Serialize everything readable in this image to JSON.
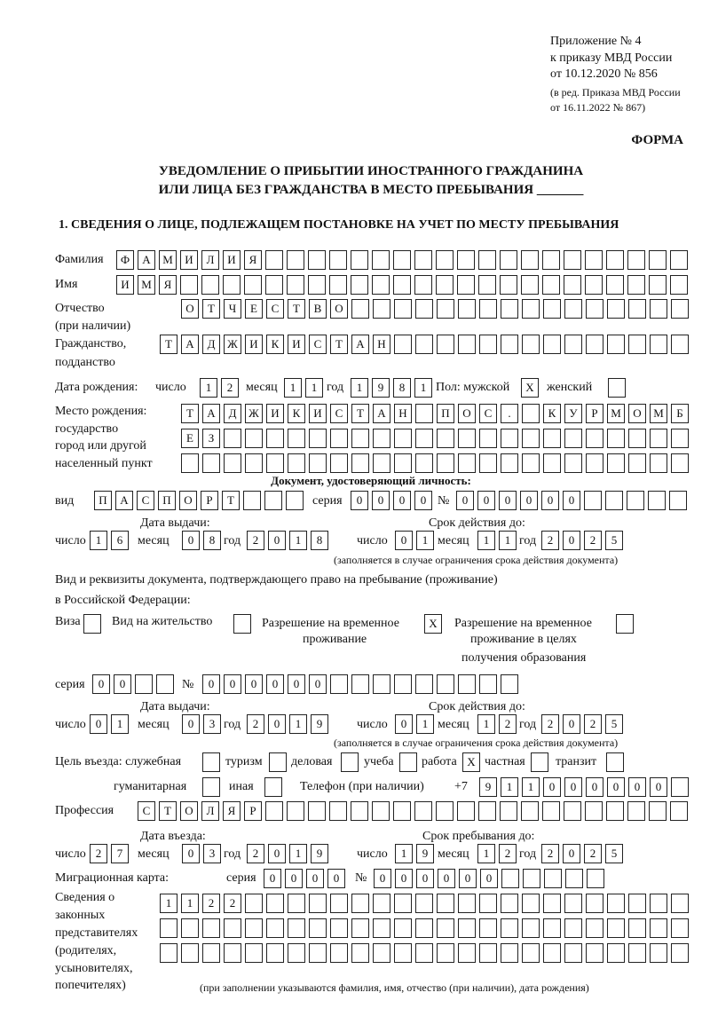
{
  "header": {
    "appendix": "Приложение № 4",
    "order": "к приказу МВД России",
    "order_date": "от 10.12.2020 № 856",
    "revision_1": "(в ред. Приказа МВД России",
    "revision_2": "от 16.11.2022 № 867)",
    "form_label": "ФОРМА",
    "title_1": "УВЕДОМЛЕНИЕ О ПРИБЫТИИ ИНОСТРАННОГО ГРАЖДАНИНА",
    "title_2": "ИЛИ ЛИЦА БЕЗ ГРАЖДАНСТВА В МЕСТО ПРЕБЫВАНИЯ _______",
    "section_1": "1. СВЕДЕНИЯ О ЛИЦЕ, ПОДЛЕЖАЩЕМ ПОСТАНОВКЕ НА УЧЕТ ПО МЕСТУ ПРЕБЫВАНИЯ"
  },
  "labels": {
    "surname": "Фамилия",
    "name": "Имя",
    "patronymic_1": "Отчество",
    "patronymic_2": "(при наличии)",
    "citizenship_1": "Гражданство,",
    "citizenship_2": "подданство",
    "birth_date": "Дата рождения:",
    "day": "число",
    "month": "месяц",
    "year": "год",
    "sex_male": "Пол: мужской",
    "sex_female": "женский",
    "birthplace_1": "Место рождения:",
    "birthplace_2": "государство",
    "birthplace_3": "город или другой",
    "birthplace_4": "населенный пункт",
    "id_doc": "Документ, удостоверяющий личность:",
    "kind": "вид",
    "series": "серия",
    "number": "№",
    "issue_date": "Дата выдачи:",
    "valid_until": "Срок действия до:",
    "validity_note": "(заполняется в случае ограничения срока действия документа)",
    "stay_doc_1": "Вид и реквизиты документа, подтверждающего право на пребывание (проживание)",
    "stay_doc_2": "в Российской Федерации:",
    "visa": "Виза",
    "residence": "Вид на жительство",
    "temp_permit_1": "Разрешение на временное",
    "temp_permit_2": "проживание",
    "edu_permit_1": "Разрешение на временное",
    "edu_permit_2": "проживание в целях",
    "edu_permit_3": "получения образования",
    "purpose": "Цель въезда: служебная",
    "tourism": "туризм",
    "business": "деловая",
    "study": "учеба",
    "work": "работа",
    "private": "частная",
    "transit": "транзит",
    "humanitarian": "гуманитарная",
    "other": "иная",
    "phone": "Телефон (при наличии)",
    "phone_prefix": "+7",
    "profession": "Профессия",
    "entry_date": "Дата въезда:",
    "stay_until": "Срок пребывания до:",
    "migration_card": "Миграционная карта:",
    "reps_1": "Сведения о",
    "reps_2": "законных",
    "reps_3": "представителях",
    "reps_4": "(родителях,",
    "reps_5": "усыновителях,",
    "reps_6": "попечителях)",
    "reps_note": "(при заполнении указываются фамилия, имя, отчество (при наличии), дата рождения)"
  },
  "values": {
    "surname": [
      "Ф",
      "А",
      "М",
      "И",
      "Л",
      "И",
      "Я"
    ],
    "name": [
      "И",
      "М",
      "Я"
    ],
    "patronymic": [
      "О",
      "Т",
      "Ч",
      "Е",
      "С",
      "Т",
      "В",
      "О"
    ],
    "citizenship": [
      "Т",
      "А",
      "Д",
      "Ж",
      "И",
      "К",
      "И",
      "С",
      "Т",
      "А",
      "Н"
    ],
    "birth_day": [
      "1",
      "2"
    ],
    "birth_month": [
      "1",
      "1"
    ],
    "birth_year": [
      "1",
      "9",
      "8",
      "1"
    ],
    "sex_male": "X",
    "sex_female": "",
    "birthplace_1": [
      "Т",
      "А",
      "Д",
      "Ж",
      "И",
      "К",
      "И",
      "С",
      "Т",
      "А",
      "Н",
      "",
      "П",
      "О",
      "С",
      ".",
      "",
      "К",
      "У",
      "Р",
      "М",
      "О",
      "М",
      "Б"
    ],
    "birthplace_2": [
      "Е",
      "З"
    ],
    "birthplace_3": [],
    "id_kind": [
      "П",
      "А",
      "С",
      "П",
      "О",
      "Р",
      "Т"
    ],
    "id_series": [
      "0",
      "0",
      "0",
      "0"
    ],
    "id_number": [
      "0",
      "0",
      "0",
      "0",
      "0",
      "0"
    ],
    "id_issue_day": [
      "1",
      "6"
    ],
    "id_issue_month": [
      "0",
      "8"
    ],
    "id_issue_year": [
      "2",
      "0",
      "1",
      "8"
    ],
    "id_valid_day": [
      "0",
      "1"
    ],
    "id_valid_month": [
      "1",
      "1"
    ],
    "id_valid_year": [
      "2",
      "0",
      "2",
      "5"
    ],
    "visa": "",
    "residence": "",
    "temp_permit": "X",
    "edu_permit": "",
    "stay_series": [
      "0",
      "0"
    ],
    "stay_number": [
      "0",
      "0",
      "0",
      "0",
      "0",
      "0"
    ],
    "stay_issue_day": [
      "0",
      "1"
    ],
    "stay_issue_month": [
      "0",
      "3"
    ],
    "stay_issue_year": [
      "2",
      "0",
      "1",
      "9"
    ],
    "stay_valid_day": [
      "0",
      "1"
    ],
    "stay_valid_month": [
      "1",
      "2"
    ],
    "stay_valid_year": [
      "2",
      "0",
      "2",
      "5"
    ],
    "purpose_service": "",
    "purpose_tourism": "",
    "purpose_business": "",
    "purpose_study": "",
    "purpose_work": "X",
    "purpose_private": "",
    "purpose_transit": "",
    "purpose_humanitarian": "",
    "purpose_other": "",
    "phone": [
      "9",
      "1",
      "1",
      "0",
      "0",
      "0",
      "0",
      "0",
      "0"
    ],
    "profession": [
      "С",
      "Т",
      "О",
      "Л",
      "Я",
      "Р"
    ],
    "entry_day": [
      "2",
      "7"
    ],
    "entry_month": [
      "0",
      "3"
    ],
    "entry_year": [
      "2",
      "0",
      "1",
      "9"
    ],
    "stay_until_day": [
      "1",
      "9"
    ],
    "stay_until_month": [
      "1",
      "2"
    ],
    "stay_until_year": [
      "2",
      "0",
      "2",
      "5"
    ],
    "mig_series": [
      "0",
      "0",
      "0",
      "0"
    ],
    "mig_number": [
      "0",
      "0",
      "0",
      "0",
      "0",
      "0"
    ],
    "reps_1": [
      "1",
      "1",
      "2",
      "2"
    ],
    "reps_2": [],
    "reps_3": []
  }
}
